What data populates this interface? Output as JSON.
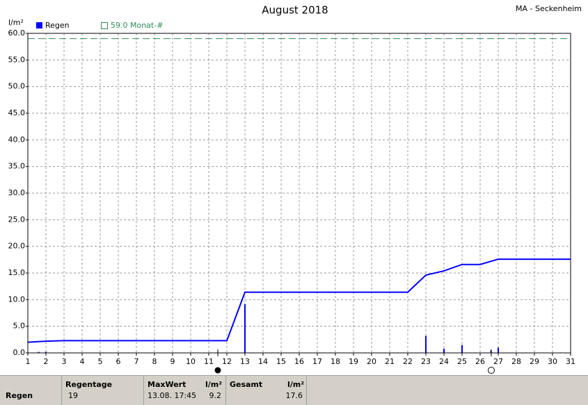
{
  "chart_data": {
    "type": "line",
    "title": "August 2018",
    "station": "MA - Seckenheim",
    "y_label": "l/m²",
    "xlim": [
      1,
      31
    ],
    "xticks": [
      1,
      2,
      3,
      4,
      5,
      6,
      7,
      8,
      9,
      10,
      11,
      12,
      13,
      14,
      15,
      16,
      17,
      18,
      19,
      20,
      21,
      22,
      23,
      24,
      25,
      26,
      27,
      28,
      29,
      30,
      31
    ],
    "ylim": [
      0,
      60
    ],
    "yticks": [
      {
        "value": 0,
        "label": "0.0"
      },
      {
        "value": 5,
        "label": "5.0"
      },
      {
        "value": 10,
        "label": "10.0"
      },
      {
        "value": 15,
        "label": "15.0"
      },
      {
        "value": 20,
        "label": "20.0"
      },
      {
        "value": 25,
        "label": "25.0"
      },
      {
        "value": 30,
        "label": "30.0"
      },
      {
        "value": 35,
        "label": "35.0"
      },
      {
        "value": 40,
        "label": "40.0"
      },
      {
        "value": 45,
        "label": "45.0"
      },
      {
        "value": 50,
        "label": "50.0"
      },
      {
        "value": 55,
        "label": "55.0"
      },
      {
        "value": 60,
        "label": "60.0"
      }
    ],
    "grid": true,
    "series": [
      {
        "color": "#0000ff",
        "x": [
          1,
          2,
          3,
          4,
          5,
          6,
          7,
          8,
          9,
          10,
          11,
          12,
          13,
          14,
          15,
          16,
          17,
          18,
          19,
          20,
          21,
          22,
          23,
          24,
          25,
          26,
          27,
          28,
          29,
          30,
          31
        ],
        "values": [
          2.0,
          2.2,
          2.3,
          2.3,
          2.3,
          2.3,
          2.3,
          2.3,
          2.3,
          2.3,
          2.3,
          2.3,
          11.4,
          11.4,
          11.4,
          11.4,
          11.4,
          11.4,
          11.4,
          11.4,
          11.4,
          11.4,
          14.6,
          15.4,
          16.6,
          16.6,
          17.6,
          17.6,
          17.6,
          17.6,
          17.6
        ]
      },
      {
        "name": "Regen",
        "mark": "bar",
        "color": "#0000ff",
        "x": [
          1.6,
          2.0,
          13.0,
          23.0,
          24.0,
          25.0,
          26.6,
          27.0
        ],
        "values": [
          0.2,
          0.2,
          9.2,
          3.2,
          0.8,
          1.5,
          0.5,
          1.0
        ]
      }
    ],
    "reference": {
      "name": "59.0 Monat-#",
      "value": 59,
      "color": "#2e8b57"
    }
  },
  "table": {
    "row_label": "Regen",
    "columns": [
      "Regentage",
      "MaxWert",
      "l/m²",
      "Gesamt",
      "l/m²"
    ],
    "values": [
      "19",
      "13.08.  17:45",
      "9.2",
      "17.6"
    ]
  }
}
